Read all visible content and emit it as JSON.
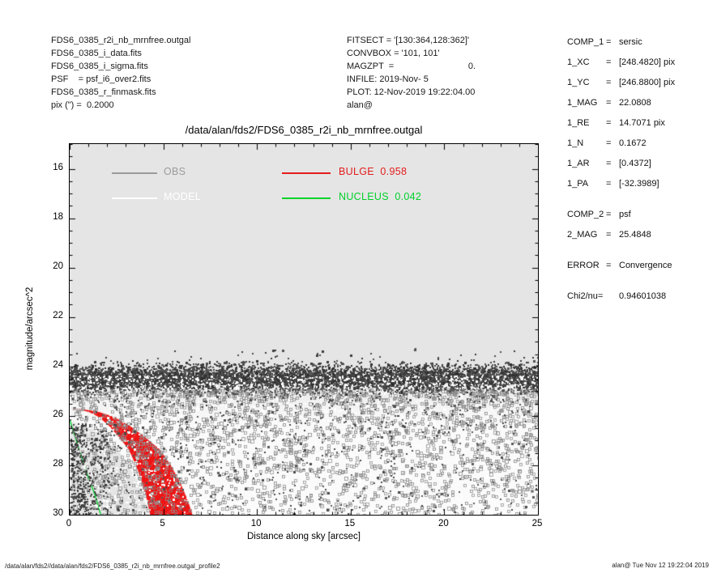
{
  "header_left": {
    "lines": [
      "FDS6_0385_r2i_nb_mrnfree.outgal",
      "FDS6_0385_i_data.fits",
      "FDS6_0385_i_sigma.fits",
      "PSF    = psf_i6_over2.fits",
      "FDS6_0385_r_finmask.fits",
      "pix (\") =  0.2000"
    ]
  },
  "header_mid": {
    "lines": [
      "FITSECT = '[130:364,128:362]'",
      "CONVBOX = '101, 101'",
      "MAGZPT  =                              0.",
      "INFILE: 2019-Nov- 5",
      "PLOT: 12-Nov-2019 19:22:04.00",
      "alan@"
    ]
  },
  "params_panel": {
    "rows": [
      {
        "label": "COMP_1",
        "eq": "=",
        "value": "sersic",
        "gap": false
      },
      {
        "label": "1_XC",
        "eq": "=",
        "value": "[248.4820] pix",
        "gap": false
      },
      {
        "label": "1_YC",
        "eq": "=",
        "value": "[246.8800] pix",
        "gap": false
      },
      {
        "label": "1_MAG",
        "eq": "=",
        "value": "22.0808",
        "gap": false
      },
      {
        "label": "1_RE",
        "eq": "=",
        "value": "14.7071 pix",
        "gap": false
      },
      {
        "label": "1_N",
        "eq": "=",
        "value": "0.1672",
        "gap": false
      },
      {
        "label": "1_AR",
        "eq": "=",
        "value": "[0.4372]",
        "gap": false
      },
      {
        "label": "1_PA",
        "eq": "=",
        "value": "[-32.3989]",
        "gap": false
      },
      {
        "label": "COMP_2",
        "eq": "=",
        "value": "psf",
        "gap": true
      },
      {
        "label": "2_MAG",
        "eq": "=",
        "value": "25.4848",
        "gap": false
      },
      {
        "label": "ERROR",
        "eq": "=",
        "value": "Convergence",
        "gap": true
      },
      {
        "label": "Chi2/nu=",
        "eq": "",
        "value": "0.94601038",
        "gap": true
      }
    ]
  },
  "footer": {
    "left": "/data/alan/fds2//data/alan/fds2/FDS6_0385_r2i_nb_mrnfree.outgal_profile2",
    "right": "alan@  Tue Nov 12 19:22:04 2019"
  },
  "chart_data": {
    "type": "scatter",
    "title": "/data/alan/fds2/FDS6_0385_r2i_nb_mrnfree.outgal",
    "xlabel": "Distance along sky [arcsec]",
    "ylabel": "magnitude/arcsec^2",
    "xlim": [
      0,
      25
    ],
    "ylim": [
      15,
      30
    ],
    "y_inverted_magnitude_axis": true,
    "xticks": [
      0,
      5,
      10,
      15,
      20,
      25
    ],
    "yticks": [
      16,
      18,
      20,
      22,
      24,
      26,
      28,
      30
    ],
    "tick_config": {
      "x_minor": 1,
      "y_minor": 0.5,
      "major_len": 7,
      "minor_len": 3.5,
      "color": "#000000"
    },
    "plot_bg": "#e5e5e5",
    "frame_color": "#000000",
    "legend": [
      {
        "label": "OBS",
        "value": "",
        "color": "#9b9b9b",
        "row": 0,
        "col": 0
      },
      {
        "label": "MODEL",
        "value": "",
        "color": "#ffffff",
        "row": 1,
        "col": 0
      },
      {
        "label": "BULGE",
        "value": "0.958",
        "color": "#e41b1b",
        "row": 0,
        "col": 1
      },
      {
        "label": "NUCLEUS",
        "value": "0.042",
        "color": "#00d22a",
        "row": 1,
        "col": 1
      }
    ],
    "curves": {
      "bulge": {
        "name": "BULGE",
        "fraction": 0.958,
        "color": "#ed1515",
        "texture_arc_alpha": 0.3,
        "texture_arc_step": 9,
        "left_scale": 0.655,
        "right_edge_x_mag": [
          [
            0,
            25.7
          ],
          [
            0.8,
            25.74
          ],
          [
            1.6,
            25.85
          ],
          [
            2.4,
            26.05
          ],
          [
            3.2,
            26.4
          ],
          [
            4.0,
            26.85
          ],
          [
            4.8,
            27.35
          ],
          [
            5.4,
            28.0
          ],
          [
            5.9,
            28.7
          ],
          [
            6.3,
            29.4
          ],
          [
            6.6,
            30.1
          ],
          [
            6.85,
            30.9
          ]
        ]
      },
      "nucleus": {
        "name": "NUCLEUS",
        "fraction": 0.042,
        "color": "#00d22a",
        "width": 1.4,
        "points_x_mag": [
          [
            0,
            26.15
          ],
          [
            0.5,
            27.35
          ],
          [
            1.0,
            28.5
          ],
          [
            1.35,
            29.2
          ],
          [
            1.7,
            30.1
          ]
        ]
      }
    },
    "model_white_field": {
      "top_mag": 24.85,
      "exclude_poly_x_mag": [
        [
          0,
          26.2
        ],
        [
          1.5,
          26.6
        ],
        [
          2.8,
          27.6
        ],
        [
          3.6,
          28.6
        ],
        [
          4.35,
          30.2
        ]
      ],
      "alpha_stops": [
        [
          0,
          0.2
        ],
        [
          0.12,
          0.55
        ],
        [
          0.3,
          0.8
        ],
        [
          1,
          0.85
        ]
      ]
    },
    "scatter_layers": [
      {
        "name": "obs-sky-band",
        "shape": "fill",
        "size": 2,
        "n": 6500,
        "x": [
          "uniform",
          0,
          25
        ],
        "mag": [
          "normal",
          24.45,
          0.27
        ],
        "mag_clip": [
          23.75,
          25.55
        ],
        "colors": [
          "#2f2f2f",
          "#3c3c3c",
          "#4a4a4a",
          "#585858"
        ]
      },
      {
        "name": "model-white-specks",
        "shape": "fill",
        "size": 2,
        "n": 2800,
        "x": [
          "uniform",
          0,
          25
        ],
        "mag": [
          "powmin",
          24.35,
          30,
          1.2
        ],
        "colors": [
          "#ffffff"
        ]
      },
      {
        "name": "obs-deep-open",
        "shape": "open",
        "size": 3,
        "n": 2600,
        "x": [
          "uniform",
          0,
          25
        ],
        "mag": [
          "powmin",
          24.9,
          30,
          1.35
        ],
        "colors": [
          "#878787",
          "#959595"
        ]
      },
      {
        "name": "obs-deep-filled",
        "shape": "fill",
        "size": 2,
        "n": 900,
        "x": [
          "uniform",
          0,
          25
        ],
        "mag": [
          "powmin",
          24.9,
          30,
          1.6
        ],
        "colors": [
          "#4a4a4a",
          "#5a5a5a"
        ]
      },
      {
        "name": "obs-center-cluster",
        "shape": "fill",
        "size": 2,
        "n": 400,
        "x": [
          "absnormal",
          0.2,
          1.1
        ],
        "mag": [
          "uniform",
          26.3,
          30
        ],
        "colors": [
          "#3a3a3a",
          "#4a4a4a"
        ]
      },
      {
        "name": "obs-outliers-above",
        "shape": "fill",
        "size": 2,
        "n": 100,
        "x": [
          "uniform",
          0,
          25
        ],
        "mag": [
          "triangle",
          23.2,
          24.0
        ],
        "colors": [
          "#3c3c3c",
          "#4f4f4f"
        ]
      }
    ]
  }
}
